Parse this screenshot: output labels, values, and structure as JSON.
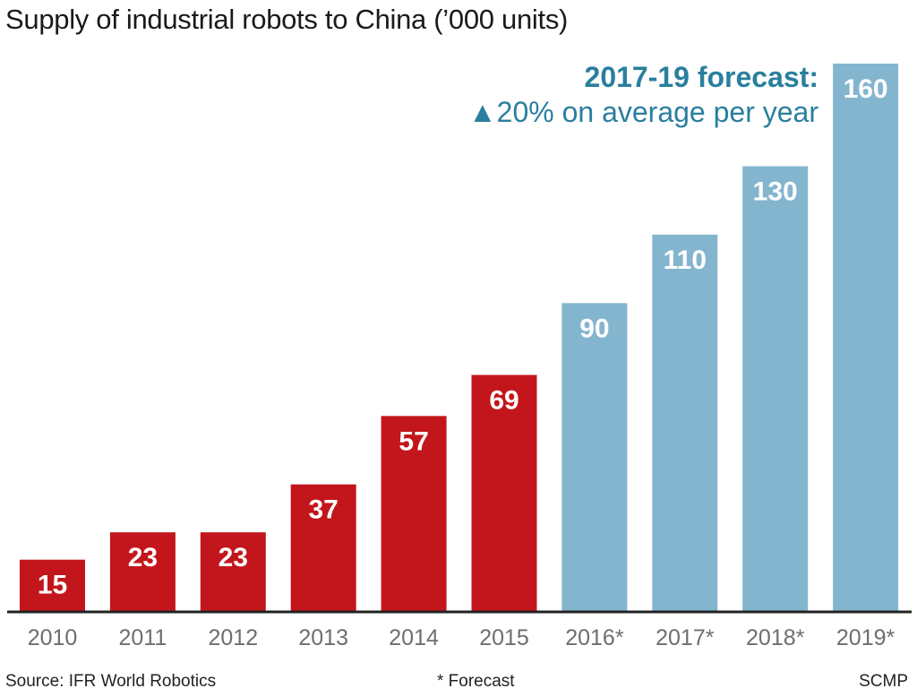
{
  "chart_data": {
    "type": "bar",
    "title": "Supply of industrial robots to China (’000 units)",
    "categories": [
      "2010",
      "2011",
      "2012",
      "2013",
      "2014",
      "2015",
      "2016*",
      "2017*",
      "2018*",
      "2019*"
    ],
    "values": [
      15,
      23,
      23,
      37,
      57,
      69,
      90,
      110,
      130,
      160
    ],
    "forecast": [
      false,
      false,
      false,
      false,
      false,
      false,
      true,
      true,
      true,
      true
    ],
    "xlabel": "",
    "ylabel": "",
    "ylim": [
      0,
      160
    ],
    "grid": false,
    "colors": {
      "actual": "#c3161c",
      "forecast": "#84b5cf",
      "annotation": "#2a7f9e"
    },
    "annotation": {
      "line1": "2017-19 forecast:",
      "line2": "▲20% on average per year"
    }
  },
  "footer": {
    "source": "Source: IFR World Robotics",
    "note": "* Forecast",
    "credit": "SCMP"
  }
}
